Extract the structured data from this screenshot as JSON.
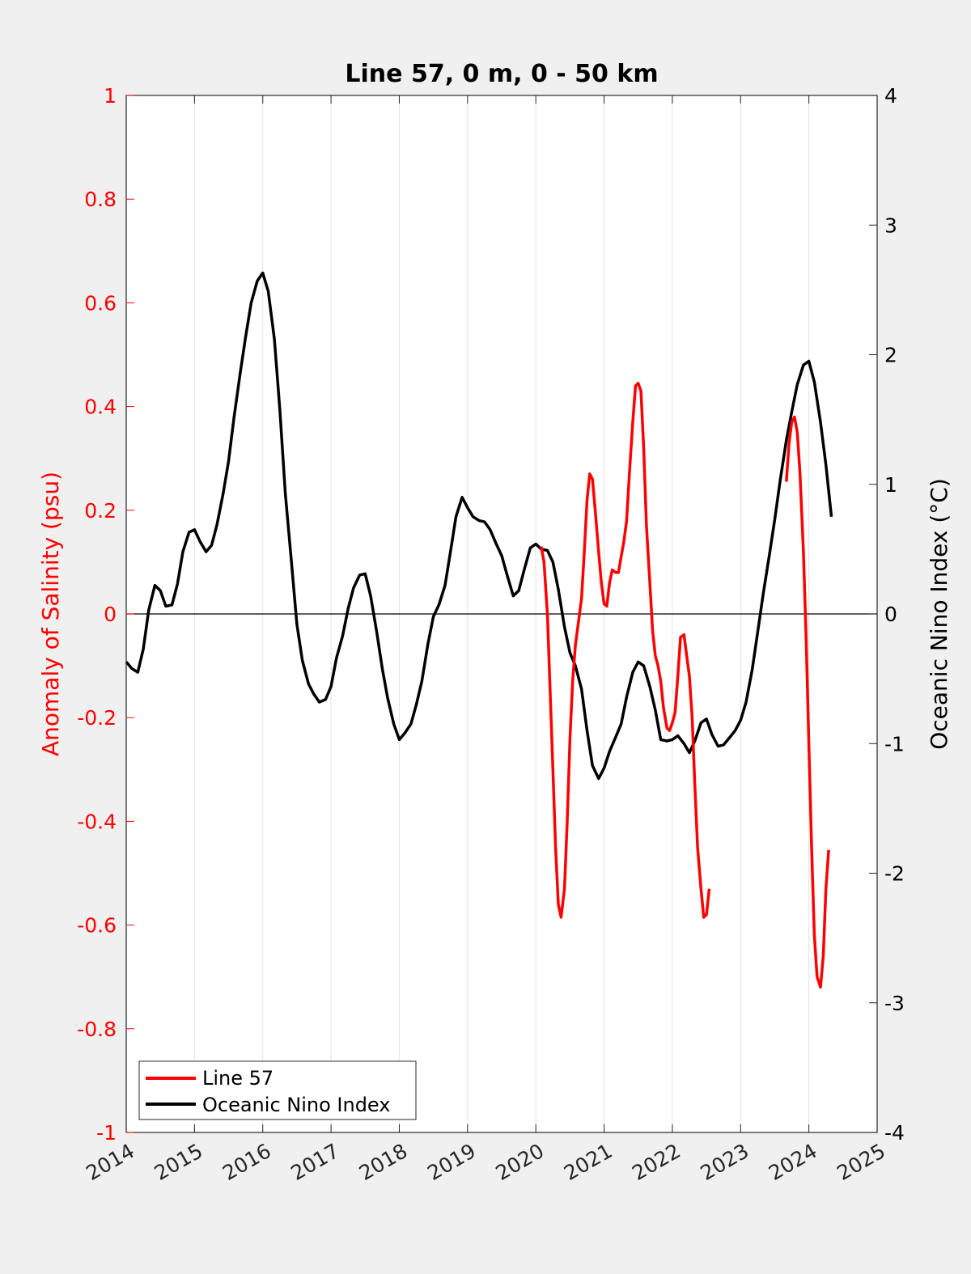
{
  "chart_data": {
    "type": "line",
    "title": "Line 57, 0 m, 0 - 50 km",
    "ylabel_left": "Anomaly of Salinity (psu)",
    "ylabel_right": "Oceanic Nino Index (°C)",
    "xlim": [
      2014,
      2025
    ],
    "ylim_left": [
      -1,
      1
    ],
    "ylim_right": [
      -4,
      4
    ],
    "x_ticks": [
      "2014",
      "2015",
      "2016",
      "2017",
      "2018",
      "2019",
      "2020",
      "2021",
      "2022",
      "2023",
      "2024",
      "2025"
    ],
    "y_left_ticks": [
      "1",
      "0.8",
      "0.6",
      "0.4",
      "0.2",
      "0",
      "-0.2",
      "-0.4",
      "-0.6",
      "-0.8",
      "-1"
    ],
    "y_right_ticks": [
      "4",
      "3",
      "2",
      "1",
      "0",
      "-1",
      "-2",
      "-3",
      "-4"
    ],
    "grid": "vertical",
    "legend_position": "bottom-left",
    "colors": {
      "line57": "#ff0000",
      "oni": "#000000"
    },
    "series": [
      {
        "name": "Line 57",
        "axis": "left",
        "segments": [
          [
            [
              2020.08,
              0.13
            ],
            [
              2020.12,
              0.1
            ],
            [
              2020.17,
              0.0
            ],
            [
              2020.21,
              -0.15
            ],
            [
              2020.25,
              -0.3
            ],
            [
              2020.29,
              -0.45
            ],
            [
              2020.33,
              -0.56
            ],
            [
              2020.37,
              -0.585
            ],
            [
              2020.42,
              -0.53
            ],
            [
              2020.46,
              -0.4
            ],
            [
              2020.5,
              -0.24
            ],
            [
              2020.54,
              -0.13
            ],
            [
              2020.58,
              -0.06
            ],
            [
              2020.62,
              -0.02
            ],
            [
              2020.67,
              0.03
            ],
            [
              2020.71,
              0.12
            ],
            [
              2020.75,
              0.22
            ],
            [
              2020.79,
              0.27
            ],
            [
              2020.83,
              0.26
            ],
            [
              2020.87,
              0.2
            ],
            [
              2020.92,
              0.12
            ],
            [
              2020.96,
              0.06
            ],
            [
              2021.0,
              0.02
            ],
            [
              2021.04,
              0.015
            ],
            [
              2021.08,
              0.06
            ],
            [
              2021.12,
              0.085
            ],
            [
              2021.17,
              0.08
            ],
            [
              2021.21,
              0.08
            ],
            [
              2021.25,
              0.11
            ],
            [
              2021.29,
              0.14
            ],
            [
              2021.33,
              0.18
            ],
            [
              2021.37,
              0.27
            ],
            [
              2021.42,
              0.37
            ],
            [
              2021.46,
              0.44
            ],
            [
              2021.5,
              0.445
            ],
            [
              2021.54,
              0.43
            ],
            [
              2021.58,
              0.32
            ],
            [
              2021.62,
              0.17
            ],
            [
              2021.67,
              0.06
            ],
            [
              2021.71,
              -0.03
            ],
            [
              2021.75,
              -0.08
            ],
            [
              2021.79,
              -0.1
            ],
            [
              2021.83,
              -0.13
            ],
            [
              2021.87,
              -0.18
            ],
            [
              2021.92,
              -0.22
            ],
            [
              2021.96,
              -0.225
            ],
            [
              2022.0,
              -0.21
            ],
            [
              2022.04,
              -0.19
            ],
            [
              2022.08,
              -0.12
            ],
            [
              2022.12,
              -0.045
            ],
            [
              2022.17,
              -0.04
            ],
            [
              2022.21,
              -0.08
            ],
            [
              2022.25,
              -0.12
            ],
            [
              2022.29,
              -0.2
            ],
            [
              2022.33,
              -0.33
            ],
            [
              2022.37,
              -0.45
            ],
            [
              2022.42,
              -0.53
            ],
            [
              2022.46,
              -0.585
            ],
            [
              2022.5,
              -0.58
            ],
            [
              2022.54,
              -0.53
            ]
          ],
          [
            [
              2023.67,
              0.255
            ],
            [
              2023.71,
              0.33
            ],
            [
              2023.75,
              0.37
            ],
            [
              2023.79,
              0.38
            ],
            [
              2023.83,
              0.35
            ],
            [
              2023.87,
              0.27
            ],
            [
              2023.92,
              0.12
            ],
            [
              2023.96,
              -0.05
            ],
            [
              2024.0,
              -0.25
            ],
            [
              2024.04,
              -0.45
            ],
            [
              2024.08,
              -0.62
            ],
            [
              2024.12,
              -0.7
            ],
            [
              2024.17,
              -0.72
            ],
            [
              2024.21,
              -0.66
            ],
            [
              2024.25,
              -0.53
            ],
            [
              2024.29,
              -0.455
            ]
          ]
        ]
      },
      {
        "name": "Oceanic Nino Index",
        "axis": "right",
        "x": [
          2014.0,
          2014.08,
          2014.17,
          2014.25,
          2014.33,
          2014.42,
          2014.5,
          2014.58,
          2014.67,
          2014.75,
          2014.83,
          2014.92,
          2015.0,
          2015.08,
          2015.17,
          2015.25,
          2015.33,
          2015.42,
          2015.5,
          2015.58,
          2015.67,
          2015.75,
          2015.83,
          2015.92,
          2016.0,
          2016.08,
          2016.17,
          2016.25,
          2016.33,
          2016.42,
          2016.5,
          2016.58,
          2016.67,
          2016.75,
          2016.83,
          2016.92,
          2017.0,
          2017.08,
          2017.17,
          2017.25,
          2017.33,
          2017.42,
          2017.5,
          2017.58,
          2017.67,
          2017.75,
          2017.83,
          2017.92,
          2018.0,
          2018.08,
          2018.17,
          2018.25,
          2018.33,
          2018.42,
          2018.5,
          2018.58,
          2018.67,
          2018.75,
          2018.83,
          2018.92,
          2019.0,
          2019.08,
          2019.17,
          2019.25,
          2019.33,
          2019.42,
          2019.5,
          2019.58,
          2019.67,
          2019.75,
          2019.83,
          2019.92,
          2020.0,
          2020.08,
          2020.17,
          2020.25,
          2020.33,
          2020.42,
          2020.5,
          2020.58,
          2020.67,
          2020.75,
          2020.83,
          2020.92,
          2021.0,
          2021.08,
          2021.17,
          2021.25,
          2021.33,
          2021.42,
          2021.5,
          2021.58,
          2021.67,
          2021.75,
          2021.83,
          2021.92,
          2022.0,
          2022.08,
          2022.17,
          2022.25,
          2022.33,
          2022.42,
          2022.5,
          2022.58,
          2022.67,
          2022.75,
          2022.83,
          2022.92,
          2023.0,
          2023.08,
          2023.17,
          2023.25,
          2023.33,
          2023.42,
          2023.5,
          2023.58,
          2023.67,
          2023.75,
          2023.83,
          2023.92,
          2024.0,
          2024.08,
          2024.17,
          2024.25,
          2024.33
        ],
        "values": [
          -0.37,
          -0.42,
          -0.45,
          -0.27,
          0.03,
          0.22,
          0.18,
          0.06,
          0.07,
          0.23,
          0.48,
          0.63,
          0.65,
          0.56,
          0.48,
          0.53,
          0.69,
          0.93,
          1.18,
          1.52,
          1.86,
          2.14,
          2.4,
          2.57,
          2.63,
          2.49,
          2.12,
          1.58,
          0.93,
          0.4,
          -0.08,
          -0.36,
          -0.54,
          -0.62,
          -0.68,
          -0.66,
          -0.56,
          -0.34,
          -0.17,
          0.04,
          0.2,
          0.3,
          0.31,
          0.14,
          -0.14,
          -0.42,
          -0.65,
          -0.85,
          -0.97,
          -0.92,
          -0.85,
          -0.7,
          -0.52,
          -0.23,
          -0.02,
          0.07,
          0.22,
          0.48,
          0.75,
          0.9,
          0.82,
          0.75,
          0.72,
          0.71,
          0.65,
          0.54,
          0.45,
          0.3,
          0.14,
          0.18,
          0.34,
          0.51,
          0.54,
          0.5,
          0.49,
          0.4,
          0.19,
          -0.1,
          -0.3,
          -0.4,
          -0.58,
          -0.9,
          -1.17,
          -1.27,
          -1.19,
          -1.06,
          -0.95,
          -0.85,
          -0.64,
          -0.45,
          -0.37,
          -0.4,
          -0.56,
          -0.74,
          -0.97,
          -0.98,
          -0.97,
          -0.94,
          -1.0,
          -1.07,
          -0.98,
          -0.84,
          -0.81,
          -0.93,
          -1.02,
          -1.01,
          -0.96,
          -0.9,
          -0.82,
          -0.68,
          -0.43,
          -0.14,
          0.15,
          0.45,
          0.73,
          1.03,
          1.34,
          1.56,
          1.77,
          1.92,
          1.95,
          1.79,
          1.48,
          1.15,
          0.75
        ]
      }
    ]
  }
}
